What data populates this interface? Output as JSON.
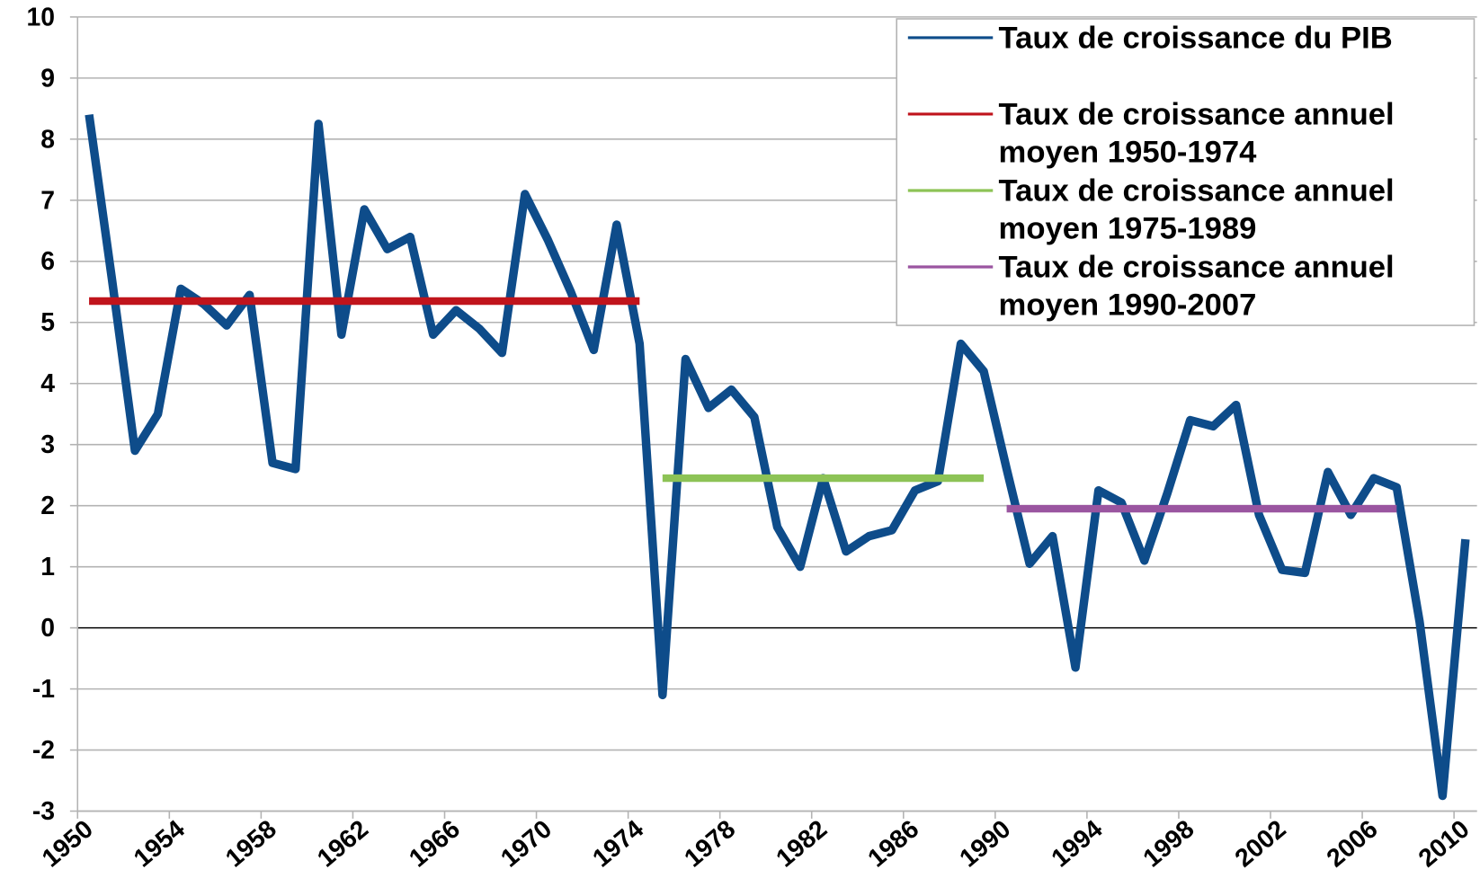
{
  "chart_data": {
    "type": "line",
    "categories": [
      "1950",
      null,
      null,
      null,
      "1954",
      null,
      null,
      null,
      "1958",
      null,
      null,
      null,
      "1962",
      null,
      null,
      null,
      "1966",
      null,
      null,
      null,
      "1970",
      null,
      null,
      null,
      "1974",
      null,
      null,
      null,
      "1978",
      null,
      null,
      null,
      "1982",
      null,
      null,
      null,
      "1986",
      null,
      null,
      null,
      "1990",
      null,
      null,
      null,
      "1994",
      null,
      null,
      null,
      "1998",
      null,
      null,
      null,
      "2002",
      null,
      null,
      null,
      "2006",
      null,
      null,
      null,
      "2010"
    ],
    "series": [
      {
        "name": "Taux de croissance du PIB",
        "color": "#0e4c8a",
        "width": 9,
        "values": [
          8.4,
          5.7,
          2.9,
          3.5,
          5.55,
          5.3,
          4.95,
          5.45,
          2.7,
          2.6,
          8.25,
          4.8,
          6.85,
          6.2,
          6.4,
          4.8,
          5.2,
          4.9,
          4.5,
          7.1,
          6.35,
          5.5,
          4.55,
          6.6,
          4.65,
          -1.1,
          4.4,
          3.6,
          3.9,
          3.45,
          1.65,
          1.0,
          2.45,
          1.25,
          1.5,
          1.6,
          2.25,
          2.4,
          4.65,
          4.2,
          2.6,
          1.05,
          1.5,
          -0.65,
          2.25,
          2.05,
          1.1,
          2.2,
          3.4,
          3.3,
          3.65,
          1.85,
          0.95,
          0.9,
          2.55,
          1.85,
          2.45,
          2.3,
          0.1,
          -2.75,
          1.45
        ]
      },
      {
        "name": "Taux de croissance annuel moyen 1950-1974",
        "color": "#c0141c",
        "width": 8,
        "values": [
          5.35,
          5.35,
          5.35,
          5.35,
          5.35,
          5.35,
          5.35,
          5.35,
          5.35,
          5.35,
          5.35,
          5.35,
          5.35,
          5.35,
          5.35,
          5.35,
          5.35,
          5.35,
          5.35,
          5.35,
          5.35,
          5.35,
          5.35,
          5.35,
          5.35,
          null,
          null,
          null,
          null,
          null,
          null,
          null,
          null,
          null,
          null,
          null,
          null,
          null,
          null,
          null,
          null,
          null,
          null,
          null,
          null,
          null,
          null,
          null,
          null,
          null,
          null,
          null,
          null,
          null,
          null,
          null,
          null,
          null,
          null,
          null,
          null
        ]
      },
      {
        "name": "Taux de croissance annuel moyen 1975-1989",
        "color": "#8dc356",
        "width": 8,
        "values": [
          null,
          null,
          null,
          null,
          null,
          null,
          null,
          null,
          null,
          null,
          null,
          null,
          null,
          null,
          null,
          null,
          null,
          null,
          null,
          null,
          null,
          null,
          null,
          null,
          null,
          2.45,
          2.45,
          2.45,
          2.45,
          2.45,
          2.45,
          2.45,
          2.45,
          2.45,
          2.45,
          2.45,
          2.45,
          2.45,
          2.45,
          2.45,
          null,
          null,
          null,
          null,
          null,
          null,
          null,
          null,
          null,
          null,
          null,
          null,
          null,
          null,
          null,
          null,
          null,
          null,
          null,
          null,
          null
        ]
      },
      {
        "name": "Taux de croissance annuel moyen 1990-2007",
        "color": "#9a55a0",
        "width": 8,
        "values": [
          null,
          null,
          null,
          null,
          null,
          null,
          null,
          null,
          null,
          null,
          null,
          null,
          null,
          null,
          null,
          null,
          null,
          null,
          null,
          null,
          null,
          null,
          null,
          null,
          null,
          null,
          null,
          null,
          null,
          null,
          null,
          null,
          null,
          null,
          null,
          null,
          null,
          null,
          null,
          null,
          1.95,
          1.95,
          1.95,
          1.95,
          1.95,
          1.95,
          1.95,
          1.95,
          1.95,
          1.95,
          1.95,
          1.95,
          1.95,
          1.95,
          1.95,
          1.95,
          1.95,
          1.95,
          null,
          null,
          null
        ]
      }
    ],
    "ylim": [
      -3,
      10
    ],
    "yticks": [
      -3,
      -2,
      -1,
      0,
      1,
      2,
      3,
      4,
      5,
      6,
      7,
      8,
      9,
      10
    ],
    "grid": true,
    "legend": "top-right"
  }
}
